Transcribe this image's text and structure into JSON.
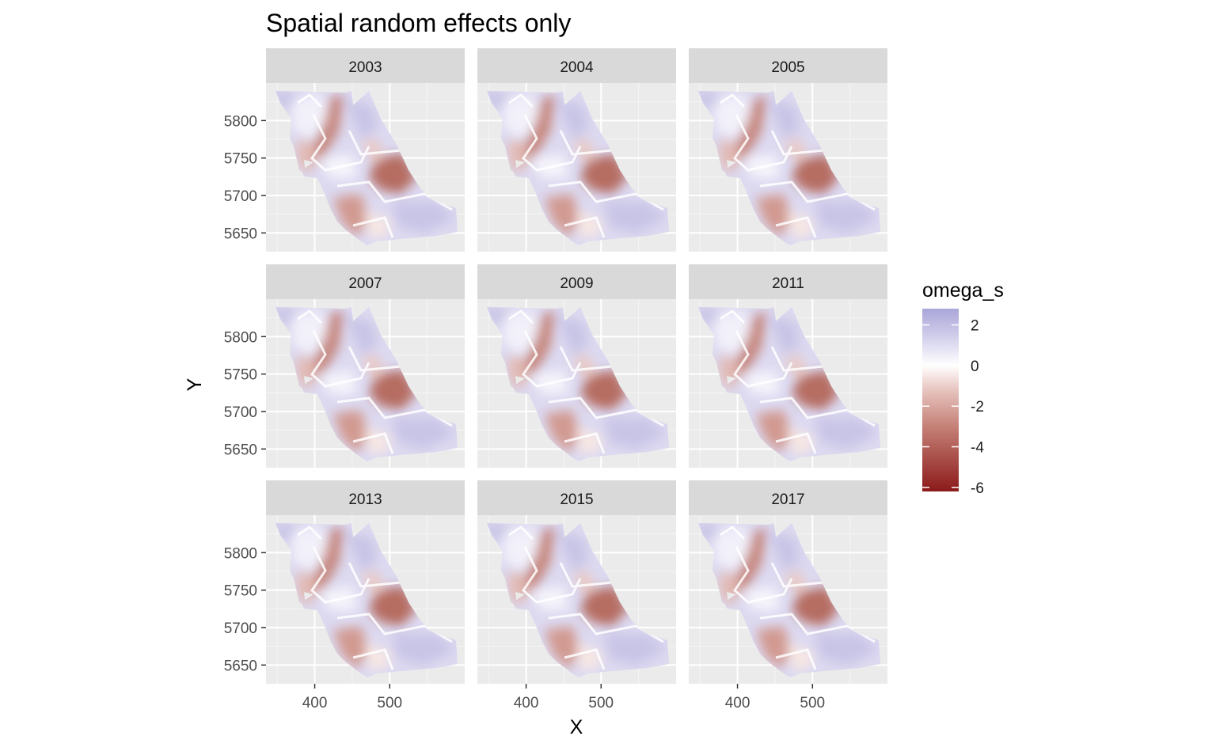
{
  "chart_data": {
    "type": "heatmap",
    "title": "Spatial random effects only",
    "xlabel": "X",
    "ylabel": "Y",
    "panels": [
      "2003",
      "2004",
      "2005",
      "2007",
      "2009",
      "2011",
      "2013",
      "2015",
      "2017"
    ],
    "x_ticks": [
      400,
      500
    ],
    "y_ticks": [
      5650,
      5700,
      5750,
      5800
    ],
    "xlim": [
      335,
      600
    ],
    "ylim": [
      5625,
      5850
    ],
    "legend": {
      "title": "omega_s",
      "ticks": [
        "2",
        "0",
        "-2",
        "-4",
        "-6"
      ],
      "tick_values": [
        2,
        0,
        -2,
        -4,
        -6
      ],
      "range": [
        -6.2,
        2.8
      ],
      "placement": "right",
      "low_color": "#8b1a1a",
      "mid_color": "#ffffff",
      "high_color": "#aaa6d8"
    },
    "panel_background": "#ebebeb",
    "strip_background": "#d9d9d9",
    "grid": true
  }
}
